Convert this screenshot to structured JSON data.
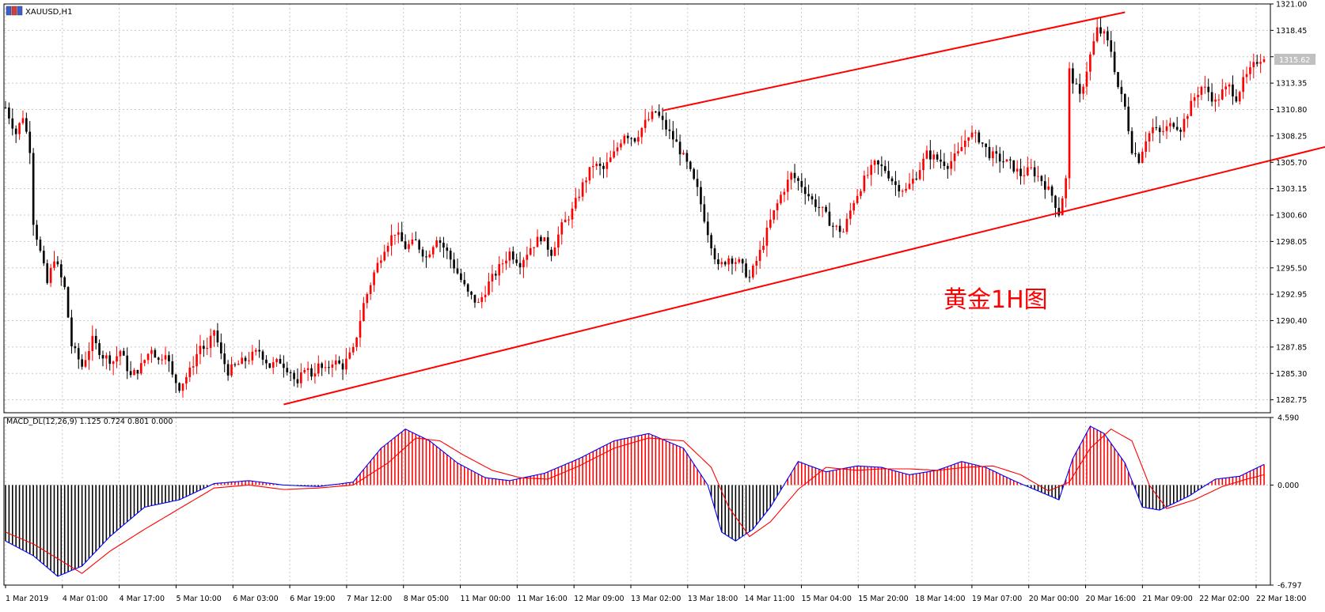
{
  "window": {
    "title": "XAUUSD,H1"
  },
  "macd_label": "MACD_DL(12,26,9) 1.125 0.724 0.801 0.000",
  "annotation": "黄金1H图",
  "current_price_label": "1315.62",
  "colors": {
    "bull": "#ff0000",
    "bear": "#000000",
    "trendline": "#ff0000",
    "macd_line": "#0000ff",
    "signal_line": "#ff0000",
    "grid": "#c8c8c8",
    "annotation": "#ff0000"
  },
  "chart_data": [
    {
      "type": "candlestick",
      "symbol": "XAUUSD",
      "timeframe": "H1",
      "ylim": [
        1281.5,
        1321.0
      ],
      "y_ticks": [
        "1321.00",
        "1318.45",
        "1315.90",
        "1313.35",
        "1310.80",
        "1308.25",
        "1305.70",
        "1303.15",
        "1300.60",
        "1298.05",
        "1295.50",
        "1292.95",
        "1290.40",
        "1287.85",
        "1285.30",
        "1282.75"
      ],
      "x_ticks": [
        "1 Mar 2019",
        "4 Mar 01:00",
        "4 Mar 17:00",
        "5 Mar 10:00",
        "6 Mar 03:00",
        "6 Mar 19:00",
        "7 Mar 12:00",
        "8 Mar 05:00",
        "11 Mar 00:00",
        "11 Mar 16:00",
        "12 Mar 09:00",
        "13 Mar 02:00",
        "13 Mar 18:00",
        "14 Mar 11:00",
        "15 Mar 04:00",
        "15 Mar 20:00",
        "18 Mar 14:00",
        "19 Mar 07:00",
        "20 Mar 00:00",
        "20 Mar 16:00",
        "21 Mar 09:00",
        "22 Mar 02:00",
        "22 Mar 18:00"
      ],
      "grid": true,
      "anchors": [
        [
          0,
          1311.0
        ],
        [
          3,
          1308.5
        ],
        [
          5,
          1310.2
        ],
        [
          7,
          1307.0
        ],
        [
          8,
          1300.0
        ],
        [
          10,
          1297.0
        ],
        [
          12,
          1294.0
        ],
        [
          14,
          1296.5
        ],
        [
          17,
          1293.5
        ],
        [
          19,
          1288.0
        ],
        [
          22,
          1286.0
        ],
        [
          25,
          1288.5
        ],
        [
          28,
          1287.0
        ],
        [
          31,
          1286.5
        ],
        [
          33,
          1287.5
        ],
        [
          36,
          1285.0
        ],
        [
          39,
          1286.0
        ],
        [
          42,
          1287.8
        ],
        [
          44,
          1286.5
        ],
        [
          46,
          1287.5
        ],
        [
          48,
          1285.0
        ],
        [
          50,
          1284.0
        ],
        [
          53,
          1285.5
        ],
        [
          56,
          1288.0
        ],
        [
          58,
          1287.5
        ],
        [
          60,
          1289.5
        ],
        [
          62,
          1287.0
        ],
        [
          64,
          1285.5
        ],
        [
          67,
          1286.2
        ],
        [
          70,
          1286.8
        ],
        [
          73,
          1287.5
        ],
        [
          76,
          1286.0
        ],
        [
          79,
          1286.5
        ],
        [
          82,
          1285.5
        ],
        [
          84,
          1284.0
        ],
        [
          86,
          1286.0
        ],
        [
          88,
          1285.2
        ],
        [
          90,
          1286.0
        ],
        [
          92,
          1285.5
        ],
        [
          94,
          1286.5
        ],
        [
          97,
          1286.0
        ],
        [
          100,
          1287.5
        ],
        [
          103,
          1292.0
        ],
        [
          106,
          1295.0
        ],
        [
          109,
          1297.5
        ],
        [
          112,
          1299.0
        ],
        [
          115,
          1297.5
        ],
        [
          118,
          1298.0
        ],
        [
          121,
          1296.5
        ],
        [
          124,
          1298.5
        ],
        [
          127,
          1297.0
        ],
        [
          130,
          1295.0
        ],
        [
          133,
          1293.0
        ],
        [
          136,
          1292.0
        ],
        [
          139,
          1294.0
        ],
        [
          142,
          1295.5
        ],
        [
          145,
          1297.0
        ],
        [
          148,
          1296.0
        ],
        [
          151,
          1297.5
        ],
        [
          154,
          1298.5
        ],
        [
          157,
          1297.0
        ],
        [
          160,
          1299.5
        ],
        [
          163,
          1301.0
        ],
        [
          166,
          1303.5
        ],
        [
          169,
          1305.5
        ],
        [
          172,
          1305.0
        ],
        [
          175,
          1306.5
        ],
        [
          178,
          1308.5
        ],
        [
          181,
          1308.0
        ],
        [
          184,
          1309.5
        ],
        [
          187,
          1310.6
        ],
        [
          190,
          1309.0
        ],
        [
          193,
          1307.5
        ],
        [
          196,
          1305.5
        ],
        [
          199,
          1303.0
        ],
        [
          202,
          1299.0
        ],
        [
          205,
          1295.5
        ],
        [
          208,
          1296.5
        ],
        [
          211,
          1296.0
        ],
        [
          214,
          1294.5
        ],
        [
          217,
          1297.0
        ],
        [
          220,
          1300.0
        ],
        [
          223,
          1302.5
        ],
        [
          226,
          1304.5
        ],
        [
          229,
          1303.5
        ],
        [
          232,
          1302.0
        ],
        [
          235,
          1301.0
        ],
        [
          238,
          1299.5
        ],
        [
          241,
          1299.0
        ],
        [
          244,
          1302.0
        ],
        [
          247,
          1304.0
        ],
        [
          250,
          1305.5
        ],
        [
          253,
          1305.0
        ],
        [
          256,
          1303.5
        ],
        [
          259,
          1303.0
        ],
        [
          262,
          1304.5
        ],
        [
          265,
          1306.5
        ],
        [
          268,
          1306.0
        ],
        [
          271,
          1305.5
        ],
        [
          274,
          1306.5
        ],
        [
          277,
          1308.5
        ],
        [
          280,
          1308.0
        ],
        [
          283,
          1306.5
        ],
        [
          286,
          1306.0
        ],
        [
          289,
          1305.5
        ],
        [
          292,
          1304.5
        ],
        [
          295,
          1305.0
        ],
        [
          298,
          1304.0
        ],
        [
          301,
          1302.5
        ],
        [
          303,
          1300.8
        ],
        [
          305,
          1304.0
        ],
        [
          306,
          1314.5
        ],
        [
          309,
          1312.0
        ],
        [
          312,
          1316.0
        ],
        [
          314,
          1318.5
        ],
        [
          316,
          1318.0
        ],
        [
          318,
          1316.5
        ],
        [
          320,
          1313.0
        ],
        [
          322,
          1311.0
        ],
        [
          324,
          1307.0
        ],
        [
          326,
          1306.0
        ],
        [
          328,
          1308.0
        ],
        [
          330,
          1309.0
        ],
        [
          332,
          1308.5
        ],
        [
          334,
          1309.0
        ],
        [
          336,
          1309.5
        ],
        [
          338,
          1309.0
        ],
        [
          340,
          1310.5
        ],
        [
          342,
          1312.0
        ],
        [
          344,
          1313.0
        ],
        [
          346,
          1312.5
        ],
        [
          348,
          1311.5
        ],
        [
          350,
          1312.5
        ],
        [
          352,
          1313.0
        ],
        [
          354,
          1312.0
        ],
        [
          356,
          1313.5
        ],
        [
          358,
          1314.5
        ],
        [
          360,
          1315.5
        ],
        [
          362,
          1316.0
        ]
      ],
      "trendlines": [
        {
          "name": "",
          "x1": 189,
          "y1": 1310.7,
          "x2": 322,
          "y2": 1320.2
        },
        {
          "name": "",
          "x1": 80,
          "y1": 1282.3,
          "x2": 387,
          "y2": 1307.8
        }
      ]
    },
    {
      "type": "macd",
      "ylim": [
        -6.797,
        4.59
      ],
      "y_ticks": [
        "4.590",
        "0.000",
        "-6.797"
      ],
      "macd_anchors": [
        [
          0,
          -3.8
        ],
        [
          8,
          -4.8
        ],
        [
          15,
          -6.2
        ],
        [
          22,
          -5.5
        ],
        [
          30,
          -3.5
        ],
        [
          40,
          -1.5
        ],
        [
          50,
          -1.0
        ],
        [
          60,
          0.1
        ],
        [
          70,
          0.3
        ],
        [
          80,
          0.0
        ],
        [
          90,
          -0.1
        ],
        [
          100,
          0.2
        ],
        [
          108,
          2.5
        ],
        [
          115,
          3.8
        ],
        [
          122,
          3.0
        ],
        [
          130,
          1.5
        ],
        [
          138,
          0.5
        ],
        [
          145,
          0.3
        ],
        [
          155,
          0.8
        ],
        [
          165,
          1.8
        ],
        [
          175,
          3.0
        ],
        [
          185,
          3.5
        ],
        [
          195,
          2.5
        ],
        [
          202,
          0.0
        ],
        [
          206,
          -3.2
        ],
        [
          210,
          -3.8
        ],
        [
          215,
          -3.0
        ],
        [
          220,
          -1.5
        ],
        [
          228,
          1.6
        ],
        [
          236,
          0.9
        ],
        [
          245,
          1.3
        ],
        [
          252,
          1.2
        ],
        [
          260,
          0.7
        ],
        [
          268,
          1.0
        ],
        [
          275,
          1.6
        ],
        [
          282,
          1.2
        ],
        [
          290,
          0.3
        ],
        [
          298,
          -0.5
        ],
        [
          303,
          -1.0
        ],
        [
          307,
          1.8
        ],
        [
          312,
          4.0
        ],
        [
          316,
          3.5
        ],
        [
          322,
          1.5
        ],
        [
          327,
          -1.5
        ],
        [
          332,
          -1.7
        ],
        [
          340,
          -0.8
        ],
        [
          348,
          0.4
        ],
        [
          355,
          0.6
        ],
        [
          362,
          1.4
        ]
      ],
      "signal_anchors": [
        [
          0,
          -3.2
        ],
        [
          8,
          -4.0
        ],
        [
          15,
          -5.0
        ],
        [
          22,
          -6.0
        ],
        [
          30,
          -4.5
        ],
        [
          40,
          -3.0
        ],
        [
          50,
          -1.6
        ],
        [
          60,
          -0.2
        ],
        [
          70,
          0.0
        ],
        [
          80,
          -0.3
        ],
        [
          90,
          -0.2
        ],
        [
          100,
          0.0
        ],
        [
          110,
          1.5
        ],
        [
          118,
          3.2
        ],
        [
          125,
          3.0
        ],
        [
          132,
          2.0
        ],
        [
          140,
          1.0
        ],
        [
          148,
          0.5
        ],
        [
          156,
          0.4
        ],
        [
          165,
          1.3
        ],
        [
          175,
          2.5
        ],
        [
          185,
          3.2
        ],
        [
          195,
          3.0
        ],
        [
          203,
          1.2
        ],
        [
          208,
          -1.5
        ],
        [
          214,
          -3.5
        ],
        [
          220,
          -2.5
        ],
        [
          228,
          -0.3
        ],
        [
          236,
          1.2
        ],
        [
          245,
          1.0
        ],
        [
          252,
          1.1
        ],
        [
          260,
          1.1
        ],
        [
          268,
          1.0
        ],
        [
          276,
          1.2
        ],
        [
          284,
          1.3
        ],
        [
          292,
          0.7
        ],
        [
          300,
          -0.4
        ],
        [
          306,
          0.2
        ],
        [
          312,
          2.5
        ],
        [
          318,
          3.8
        ],
        [
          324,
          3.0
        ],
        [
          329,
          0.0
        ],
        [
          334,
          -1.6
        ],
        [
          342,
          -1.0
        ],
        [
          350,
          -0.1
        ],
        [
          357,
          0.4
        ],
        [
          362,
          0.7
        ]
      ]
    }
  ]
}
